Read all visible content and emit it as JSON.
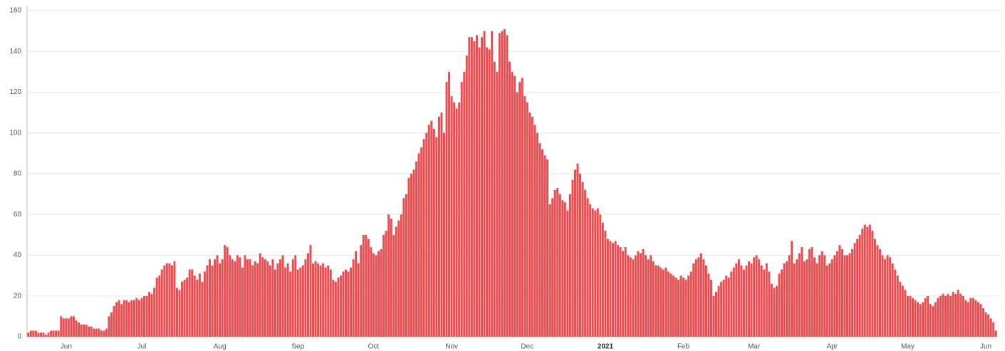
{
  "chart_data": {
    "type": "bar",
    "color": "#ee4b4f",
    "grid": true,
    "ylim": [
      0,
      160
    ],
    "yticks": [
      0,
      20,
      40,
      60,
      80,
      100,
      120,
      140,
      160
    ],
    "categories": [
      null,
      null,
      null,
      null,
      null,
      null,
      null,
      null,
      null,
      null,
      null,
      null,
      null,
      null,
      null,
      "Jun",
      null,
      null,
      null,
      null,
      null,
      null,
      null,
      null,
      null,
      null,
      null,
      null,
      null,
      null,
      null,
      null,
      null,
      null,
      null,
      null,
      null,
      null,
      null,
      null,
      null,
      null,
      null,
      null,
      null,
      "Jul",
      null,
      null,
      null,
      null,
      null,
      null,
      null,
      null,
      null,
      null,
      null,
      null,
      null,
      null,
      null,
      null,
      null,
      null,
      null,
      null,
      null,
      null,
      null,
      null,
      null,
      null,
      null,
      null,
      null,
      null,
      "Aug",
      null,
      null,
      null,
      null,
      null,
      null,
      null,
      null,
      null,
      null,
      null,
      null,
      null,
      null,
      null,
      null,
      null,
      null,
      null,
      null,
      null,
      null,
      null,
      null,
      null,
      null,
      null,
      null,
      null,
      null,
      "Sep",
      null,
      null,
      null,
      null,
      null,
      null,
      null,
      null,
      null,
      null,
      null,
      null,
      null,
      null,
      null,
      null,
      null,
      null,
      null,
      null,
      null,
      null,
      null,
      null,
      null,
      null,
      null,
      null,
      null,
      "Oct",
      null,
      null,
      null,
      null,
      null,
      null,
      null,
      null,
      null,
      null,
      null,
      null,
      null,
      null,
      null,
      null,
      null,
      null,
      null,
      null,
      null,
      null,
      null,
      null,
      null,
      null,
      null,
      null,
      null,
      null,
      "Nov",
      null,
      null,
      null,
      null,
      null,
      null,
      null,
      null,
      null,
      null,
      null,
      null,
      null,
      null,
      null,
      null,
      null,
      null,
      null,
      null,
      null,
      null,
      null,
      null,
      null,
      null,
      null,
      null,
      null,
      "Dec",
      null,
      null,
      null,
      null,
      null,
      null,
      null,
      null,
      null,
      null,
      null,
      null,
      null,
      null,
      null,
      null,
      null,
      null,
      null,
      null,
      null,
      null,
      null,
      null,
      null,
      null,
      null,
      null,
      null,
      null,
      "2021",
      null,
      null,
      null,
      null,
      null,
      null,
      null,
      null,
      null,
      null,
      null,
      null,
      null,
      null,
      null,
      null,
      null,
      null,
      null,
      null,
      null,
      null,
      null,
      null,
      null,
      null,
      null,
      null,
      null,
      null,
      "Feb",
      null,
      null,
      null,
      null,
      null,
      null,
      null,
      null,
      null,
      null,
      null,
      null,
      null,
      null,
      null,
      null,
      null,
      null,
      null,
      null,
      null,
      null,
      null,
      null,
      null,
      null,
      null,
      "Mar",
      null,
      null,
      null,
      null,
      null,
      null,
      null,
      null,
      null,
      null,
      null,
      null,
      null,
      null,
      null,
      null,
      null,
      null,
      null,
      null,
      null,
      null,
      null,
      null,
      null,
      null,
      null,
      null,
      null,
      null,
      "Apr",
      null,
      null,
      null,
      null,
      null,
      null,
      null,
      null,
      null,
      null,
      null,
      null,
      null,
      null,
      null,
      null,
      null,
      null,
      null,
      null,
      null,
      null,
      null,
      null,
      null,
      null,
      null,
      null,
      null,
      "May",
      null,
      null,
      null,
      null,
      null,
      null,
      null,
      null,
      null,
      null,
      null,
      null,
      null,
      null,
      null,
      null,
      null,
      null,
      null,
      null,
      null,
      null,
      null,
      null,
      null,
      null,
      null,
      null,
      null,
      null,
      "Jun",
      null,
      null,
      null,
      null
    ],
    "values": [
      2,
      3,
      3,
      3,
      2,
      2,
      2,
      1,
      2,
      3,
      3,
      3,
      3,
      10,
      9,
      9,
      9,
      10,
      10,
      8,
      7,
      6,
      6,
      6,
      5,
      5,
      4,
      4,
      4,
      3,
      3,
      4,
      10,
      12,
      15,
      17,
      18,
      16,
      18,
      18,
      17,
      18,
      18,
      19,
      18,
      19,
      20,
      20,
      22,
      21,
      24,
      29,
      30,
      33,
      35,
      36,
      36,
      35,
      37,
      24,
      23,
      27,
      28,
      29,
      33,
      33,
      30,
      28,
      31,
      27,
      32,
      35,
      38,
      35,
      38,
      40,
      36,
      38,
      45,
      44,
      40,
      38,
      37,
      40,
      39,
      34,
      40,
      38,
      38,
      35,
      37,
      36,
      41,
      39,
      38,
      37,
      35,
      38,
      33,
      36,
      38,
      40,
      34,
      36,
      32,
      38,
      40,
      33,
      34,
      35,
      38,
      41,
      45,
      36,
      37,
      36,
      35,
      36,
      34,
      35,
      33,
      28,
      27,
      29,
      30,
      32,
      33,
      32,
      34,
      38,
      42,
      36,
      45,
      50,
      50,
      48,
      44,
      41,
      40,
      42,
      43,
      50,
      52,
      60,
      58,
      50,
      54,
      57,
      60,
      68,
      70,
      78,
      80,
      82,
      86,
      90,
      93,
      97,
      100,
      104,
      106,
      102,
      98,
      108,
      110,
      100,
      125,
      130,
      118,
      115,
      112,
      115,
      125,
      130,
      138,
      147,
      147,
      145,
      148,
      142,
      147,
      150,
      142,
      141,
      150,
      135,
      130,
      149,
      150,
      151,
      148,
      135,
      130,
      128,
      120,
      125,
      127,
      118,
      115,
      110,
      108,
      104,
      100,
      95,
      92,
      89,
      87,
      65,
      68,
      72,
      73,
      70,
      67,
      66,
      62,
      70,
      77,
      82,
      85,
      80,
      76,
      72,
      68,
      65,
      63,
      62,
      63,
      60,
      56,
      52,
      48,
      47,
      46,
      47,
      45,
      44,
      42,
      44,
      40,
      39,
      38,
      40,
      42,
      41,
      43,
      40,
      38,
      40,
      37,
      35,
      35,
      34,
      33,
      34,
      32,
      31,
      30,
      29,
      28,
      30,
      29,
      28,
      30,
      32,
      36,
      38,
      39,
      41,
      38,
      35,
      31,
      28,
      20,
      22,
      25,
      27,
      28,
      30,
      29,
      32,
      34,
      36,
      38,
      35,
      33,
      35,
      37,
      36,
      39,
      40,
      38,
      35,
      33,
      36,
      32,
      26,
      24,
      25,
      31,
      33,
      36,
      37,
      40,
      47,
      36,
      38,
      41,
      44,
      37,
      38,
      43,
      44,
      39,
      36,
      40,
      42,
      40,
      35,
      36,
      38,
      40,
      42,
      45,
      43,
      40,
      40,
      41,
      43,
      46,
      48,
      50,
      53,
      55,
      54,
      55,
      52,
      48,
      45,
      43,
      40,
      38,
      40,
      39,
      36,
      33,
      30,
      27,
      25,
      23,
      20,
      20,
      19,
      18,
      17,
      16,
      17,
      19,
      20,
      16,
      15,
      17,
      19,
      20,
      21,
      20,
      21,
      20,
      22,
      21,
      23,
      21,
      20,
      18,
      17,
      19,
      19,
      18,
      17,
      16,
      14,
      12,
      11,
      9,
      7,
      3
    ]
  }
}
